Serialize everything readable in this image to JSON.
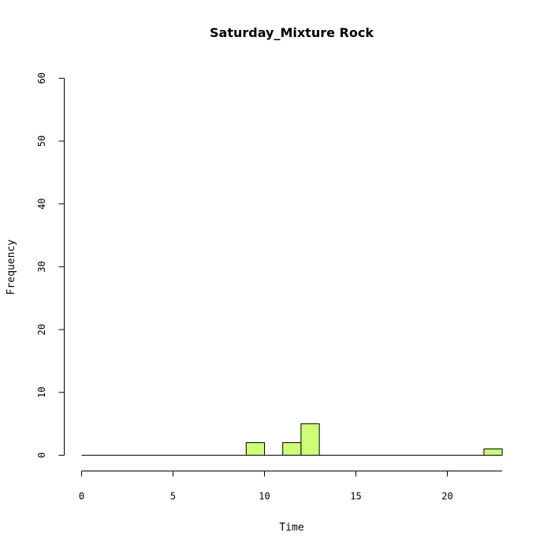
{
  "chart_data": {
    "type": "bar",
    "title": "Saturday_Mixture Rock",
    "xlabel": "Time",
    "ylabel": "Frequency",
    "bin_width": 1,
    "bins": [
      {
        "start": 0,
        "end": 1,
        "count": 0
      },
      {
        "start": 1,
        "end": 2,
        "count": 0
      },
      {
        "start": 2,
        "end": 3,
        "count": 0
      },
      {
        "start": 3,
        "end": 4,
        "count": 0
      },
      {
        "start": 4,
        "end": 5,
        "count": 0
      },
      {
        "start": 5,
        "end": 6,
        "count": 0
      },
      {
        "start": 6,
        "end": 7,
        "count": 0
      },
      {
        "start": 7,
        "end": 8,
        "count": 0
      },
      {
        "start": 8,
        "end": 9,
        "count": 0
      },
      {
        "start": 9,
        "end": 10,
        "count": 2
      },
      {
        "start": 10,
        "end": 11,
        "count": 0
      },
      {
        "start": 11,
        "end": 12,
        "count": 2
      },
      {
        "start": 12,
        "end": 13,
        "count": 5
      },
      {
        "start": 13,
        "end": 14,
        "count": 0
      },
      {
        "start": 14,
        "end": 15,
        "count": 0
      },
      {
        "start": 15,
        "end": 16,
        "count": 0
      },
      {
        "start": 16,
        "end": 17,
        "count": 0
      },
      {
        "start": 17,
        "end": 18,
        "count": 0
      },
      {
        "start": 18,
        "end": 19,
        "count": 0
      },
      {
        "start": 19,
        "end": 20,
        "count": 0
      },
      {
        "start": 20,
        "end": 21,
        "count": 0
      },
      {
        "start": 21,
        "end": 22,
        "count": 0
      },
      {
        "start": 22,
        "end": 23,
        "count": 1
      }
    ],
    "xlim": [
      0,
      23
    ],
    "ylim": [
      0,
      60
    ],
    "x_ticks": [
      0,
      5,
      10,
      15,
      20
    ],
    "y_ticks": [
      0,
      10,
      20,
      30,
      40,
      50,
      60
    ],
    "bar_color": "#ccff77",
    "grid": false
  }
}
